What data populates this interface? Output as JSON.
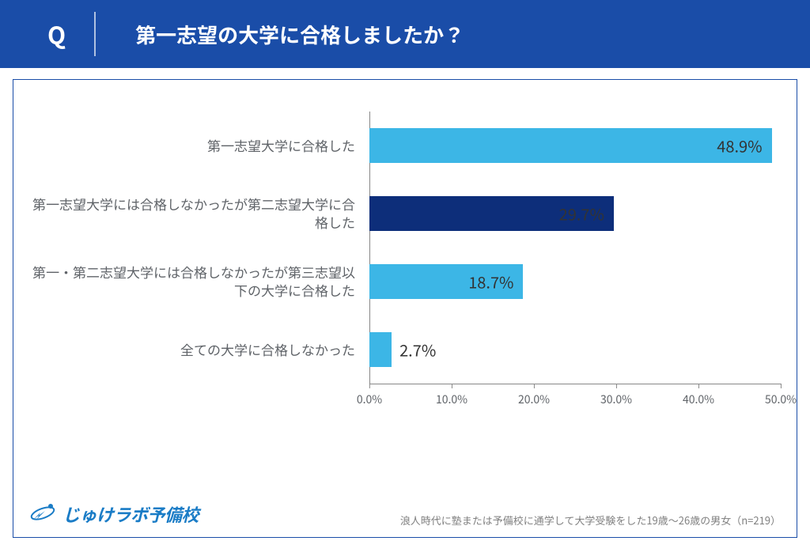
{
  "header": {
    "bg_color": "#1a4da8",
    "text_color": "#ffffff",
    "q_label": "Q",
    "title": "第一志望の大学に合格しましたか？"
  },
  "chart": {
    "type": "bar",
    "orientation": "horizontal",
    "background_color": "#ffffff",
    "border_color": "#1a4da8",
    "x_max_pct": 50,
    "x_ticks": [
      "0.0%",
      "10.0%",
      "20.0%",
      "30.0%",
      "40.0%",
      "50.0%"
    ],
    "x_tick_positions": [
      0,
      10,
      20,
      30,
      40,
      50
    ],
    "bars": [
      {
        "label": "第一志望大学に合格した",
        "value": 48.9,
        "display": "48.9%",
        "color": "#3cb6e6",
        "value_pos": "inside"
      },
      {
        "label": "第一志望大学には合格しなかったが第二志望大学に合格した",
        "value": 29.7,
        "display": "29.7%",
        "color": "#0d2e7a",
        "value_pos": "inside"
      },
      {
        "label": "第一・第二志望大学には合格しなかったが第三志望以下の大学に合格した",
        "value": 18.7,
        "display": "18.7%",
        "color": "#3cb6e6",
        "value_pos": "inside"
      },
      {
        "label": "全ての大学に合格しなかった",
        "value": 2.7,
        "display": "2.7%",
        "color": "#3cb6e6",
        "value_pos": "outside"
      }
    ]
  },
  "brand": {
    "text": "じゅけラボ予備校",
    "color": "#1a7cc6"
  },
  "source": "浪人時代に塾または予備校に通学して大学受験をした19歳～26歳の男女（n=219）"
}
